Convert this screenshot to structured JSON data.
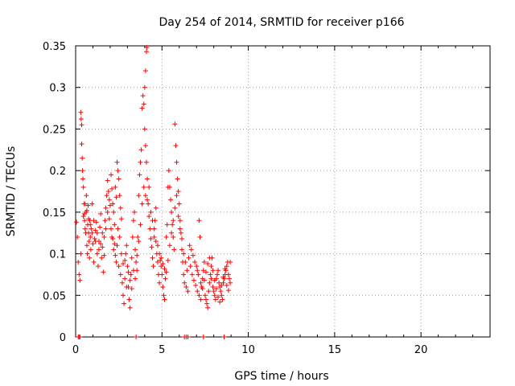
{
  "chart_data": {
    "type": "scatter",
    "title": "Day 254 of 2014, SRMTID for receiver p166",
    "xlabel": "GPS time / hours",
    "ylabel": "SRMTID / TECUs",
    "xlim": [
      0,
      24
    ],
    "ylim": [
      0,
      0.35
    ],
    "xticks": [
      0,
      5,
      10,
      15,
      20
    ],
    "xtick_labels": [
      "0",
      "5",
      "10",
      "15",
      "20"
    ],
    "yticks": [
      0,
      0.05,
      0.1,
      0.15,
      0.2,
      0.25,
      0.3,
      0.35
    ],
    "ytick_labels": [
      "0",
      "0.05",
      "0.1",
      "0.15",
      "0.2",
      "0.25",
      "0.3",
      "0.35"
    ],
    "grid": true,
    "marker": "+",
    "series": [
      {
        "name": "SRMTID p166",
        "color": "#ff0000",
        "points": [
          [
            0.05,
            0.138
          ],
          [
            0.1,
            0.12
          ],
          [
            0.15,
            0.09
          ],
          [
            0.2,
            0.075
          ],
          [
            0.25,
            0.068
          ],
          [
            0.3,
            0.1
          ],
          [
            0.3,
            0.27
          ],
          [
            0.32,
            0.262
          ],
          [
            0.35,
            0.255
          ],
          [
            0.35,
            0.232
          ],
          [
            0.38,
            0.215
          ],
          [
            0.4,
            0.2
          ],
          [
            0.42,
            0.19
          ],
          [
            0.45,
            0.18
          ],
          [
            0.48,
            0.16
          ],
          [
            0.5,
            0.148
          ],
          [
            0.52,
            0.14
          ],
          [
            0.55,
            0.13
          ],
          [
            0.58,
            0.125
          ],
          [
            0.6,
            0.15
          ],
          [
            0.62,
            0.17
          ],
          [
            0.65,
            0.11
          ],
          [
            0.68,
            0.1
          ],
          [
            0.7,
            0.135
          ],
          [
            0.72,
            0.158
          ],
          [
            0.75,
            0.125
          ],
          [
            0.78,
            0.115
          ],
          [
            0.8,
            0.095
          ],
          [
            0.82,
            0.14
          ],
          [
            0.85,
            0.12
          ],
          [
            0.88,
            0.105
          ],
          [
            0.9,
            0.13
          ],
          [
            0.95,
            0.16
          ],
          [
            1.0,
            0.112
          ],
          [
            1.05,
            0.09
          ],
          [
            1.1,
            0.118
          ],
          [
            1.15,
            0.128
          ],
          [
            1.2,
            0.138
          ],
          [
            1.25,
            0.1
          ],
          [
            1.3,
            0.085
          ],
          [
            1.35,
            0.115
          ],
          [
            1.4,
            0.132
          ],
          [
            1.45,
            0.148
          ],
          [
            1.5,
            0.095
          ],
          [
            1.55,
            0.108
          ],
          [
            1.6,
            0.078
          ],
          [
            1.65,
            0.12
          ],
          [
            1.7,
            0.14
          ],
          [
            1.75,
            0.155
          ],
          [
            1.8,
            0.17
          ],
          [
            1.85,
            0.188
          ],
          [
            1.9,
            0.175
          ],
          [
            1.95,
            0.165
          ],
          [
            2.0,
            0.158
          ],
          [
            2.05,
            0.195
          ],
          [
            2.1,
            0.178
          ],
          [
            2.15,
            0.16
          ],
          [
            2.2,
            0.15
          ],
          [
            2.25,
            0.135
          ],
          [
            2.3,
            0.18
          ],
          [
            2.35,
            0.168
          ],
          [
            2.4,
            0.21
          ],
          [
            2.45,
            0.2
          ],
          [
            2.5,
            0.19
          ],
          [
            2.55,
            0.17
          ],
          [
            2.6,
            0.155
          ],
          [
            2.65,
            0.142
          ],
          [
            2.1,
            0.12
          ],
          [
            2.2,
            0.105
          ],
          [
            2.3,
            0.098
          ],
          [
            2.4,
            0.11
          ],
          [
            2.5,
            0.085
          ],
          [
            2.6,
            0.075
          ],
          [
            2.7,
            0.065
          ],
          [
            2.75,
            0.05
          ],
          [
            2.8,
            0.04
          ],
          [
            2.85,
            0.092
          ],
          [
            2.9,
            0.1
          ],
          [
            2.95,
            0.11
          ],
          [
            3.0,
            0.085
          ],
          [
            3.05,
            0.06
          ],
          [
            3.1,
            0.045
          ],
          [
            3.15,
            0.035
          ],
          [
            3.2,
            0.075
          ],
          [
            3.25,
            0.095
          ],
          [
            3.3,
            0.12
          ],
          [
            3.35,
            0.14
          ],
          [
            3.4,
            0.15
          ],
          [
            3.45,
            0.105
          ],
          [
            3.5,
            0.09
          ],
          [
            3.55,
            0.08
          ],
          [
            3.6,
            0.12
          ],
          [
            3.65,
            0.17
          ],
          [
            3.7,
            0.195
          ],
          [
            3.75,
            0.21
          ],
          [
            3.8,
            0.225
          ],
          [
            3.85,
            0.275
          ],
          [
            3.9,
            0.29
          ],
          [
            3.95,
            0.28
          ],
          [
            4.0,
            0.3
          ],
          [
            4.05,
            0.32
          ],
          [
            4.1,
            0.343
          ],
          [
            4.12,
            0.348
          ],
          [
            4.0,
            0.25
          ],
          [
            4.05,
            0.23
          ],
          [
            4.1,
            0.21
          ],
          [
            4.15,
            0.19
          ],
          [
            4.2,
            0.16
          ],
          [
            4.25,
            0.145
          ],
          [
            4.3,
            0.13
          ],
          [
            4.35,
            0.118
          ],
          [
            4.4,
            0.108
          ],
          [
            4.45,
            0.095
          ],
          [
            4.5,
            0.085
          ],
          [
            4.55,
            0.12
          ],
          [
            4.6,
            0.14
          ],
          [
            4.65,
            0.155
          ],
          [
            4.7,
            0.1
          ],
          [
            4.75,
            0.09
          ],
          [
            4.8,
            0.075
          ],
          [
            4.85,
            0.065
          ],
          [
            4.9,
            0.092
          ],
          [
            4.95,
            0.085
          ],
          [
            5.0,
            0.075
          ],
          [
            5.05,
            0.06
          ],
          [
            5.1,
            0.05
          ],
          [
            5.15,
            0.045
          ],
          [
            5.2,
            0.07
          ],
          [
            5.25,
            0.12
          ],
          [
            5.3,
            0.135
          ],
          [
            5.35,
            0.18
          ],
          [
            5.4,
            0.2
          ],
          [
            5.45,
            0.18
          ],
          [
            5.5,
            0.165
          ],
          [
            5.55,
            0.15
          ],
          [
            5.6,
            0.135
          ],
          [
            5.65,
            0.12
          ],
          [
            5.7,
            0.105
          ],
          [
            5.75,
            0.256
          ],
          [
            5.8,
            0.23
          ],
          [
            5.85,
            0.21
          ],
          [
            5.9,
            0.19
          ],
          [
            5.95,
            0.175
          ],
          [
            6.0,
            0.16
          ],
          [
            6.05,
            0.14
          ],
          [
            6.1,
            0.125
          ],
          [
            6.15,
            0.105
          ],
          [
            6.2,
            0.09
          ],
          [
            6.25,
            0.075
          ],
          [
            6.3,
            0.065
          ],
          [
            6.4,
            0.06
          ],
          [
            6.5,
            0.055
          ],
          [
            6.6,
            0.11
          ],
          [
            6.7,
            0.105
          ],
          [
            6.8,
            0.098
          ],
          [
            6.9,
            0.09
          ],
          [
            7.0,
            0.085
          ],
          [
            7.05,
            0.08
          ],
          [
            7.1,
            0.075
          ],
          [
            7.15,
            0.14
          ],
          [
            7.2,
            0.12
          ],
          [
            7.25,
            0.065
          ],
          [
            7.3,
            0.06
          ],
          [
            7.35,
            0.07
          ],
          [
            7.4,
            0.08
          ],
          [
            7.45,
            0.09
          ],
          [
            7.5,
            0.05
          ],
          [
            7.55,
            0.045
          ],
          [
            7.6,
            0.04
          ],
          [
            7.65,
            0.035
          ],
          [
            7.7,
            0.055
          ],
          [
            7.75,
            0.065
          ],
          [
            7.8,
            0.075
          ],
          [
            7.85,
            0.085
          ],
          [
            7.9,
            0.095
          ],
          [
            7.95,
            0.06
          ],
          [
            8.0,
            0.055
          ],
          [
            8.05,
            0.05
          ],
          [
            8.1,
            0.045
          ],
          [
            8.15,
            0.07
          ],
          [
            8.2,
            0.075
          ],
          [
            8.25,
            0.08
          ],
          [
            8.3,
            0.065
          ],
          [
            8.35,
            0.06
          ],
          [
            8.4,
            0.055
          ],
          [
            8.45,
            0.05
          ],
          [
            8.5,
            0.045
          ],
          [
            8.55,
            0.065
          ],
          [
            8.6,
            0.07
          ],
          [
            8.65,
            0.075
          ],
          [
            8.7,
            0.08
          ],
          [
            8.75,
            0.085
          ],
          [
            8.8,
            0.09
          ],
          [
            8.85,
            0.075
          ],
          [
            8.9,
            0.07
          ],
          [
            8.95,
            0.065
          ],
          [
            0.45,
            0.145
          ],
          [
            0.55,
            0.16
          ],
          [
            0.65,
            0.152
          ],
          [
            0.75,
            0.142
          ],
          [
            0.85,
            0.135
          ],
          [
            0.95,
            0.125
          ],
          [
            1.05,
            0.14
          ],
          [
            1.15,
            0.115
          ],
          [
            1.25,
            0.125
          ],
          [
            1.35,
            0.105
          ],
          [
            1.45,
            0.112
          ],
          [
            1.55,
            0.125
          ],
          [
            1.65,
            0.098
          ],
          [
            1.75,
            0.13
          ],
          [
            1.85,
            0.15
          ],
          [
            1.95,
            0.142
          ],
          [
            2.05,
            0.13
          ],
          [
            2.15,
            0.118
          ],
          [
            2.25,
            0.112
          ],
          [
            2.35,
            0.09
          ],
          [
            2.45,
            0.13
          ],
          [
            2.55,
            0.12
          ],
          [
            2.65,
            0.1
          ],
          [
            2.75,
            0.088
          ],
          [
            2.85,
            0.07
          ],
          [
            2.95,
            0.06
          ],
          [
            3.05,
            0.078
          ],
          [
            3.15,
            0.068
          ],
          [
            3.25,
            0.058
          ],
          [
            3.35,
            0.08
          ],
          [
            3.45,
            0.07
          ],
          [
            3.55,
            0.098
          ],
          [
            3.65,
            0.115
          ],
          [
            3.75,
            0.135
          ],
          [
            3.85,
            0.16
          ],
          [
            3.95,
            0.18
          ],
          [
            4.05,
            0.17
          ],
          [
            4.15,
            0.165
          ],
          [
            4.25,
            0.18
          ],
          [
            4.35,
            0.15
          ],
          [
            4.45,
            0.14
          ],
          [
            4.55,
            0.13
          ],
          [
            4.65,
            0.115
          ],
          [
            4.75,
            0.11
          ],
          [
            4.85,
            0.1
          ],
          [
            4.95,
            0.095
          ],
          [
            5.05,
            0.088
          ],
          [
            5.15,
            0.082
          ],
          [
            5.25,
            0.078
          ],
          [
            5.35,
            0.092
          ],
          [
            5.45,
            0.11
          ],
          [
            5.55,
            0.125
          ],
          [
            5.65,
            0.14
          ],
          [
            5.75,
            0.155
          ],
          [
            5.85,
            0.17
          ],
          [
            5.95,
            0.145
          ],
          [
            6.05,
            0.13
          ],
          [
            6.15,
            0.118
          ],
          [
            6.25,
            0.1
          ],
          [
            6.35,
            0.09
          ],
          [
            6.45,
            0.08
          ],
          [
            6.55,
            0.095
          ],
          [
            6.65,
            0.085
          ],
          [
            6.75,
            0.075
          ],
          [
            6.85,
            0.068
          ],
          [
            6.95,
            0.062
          ],
          [
            7.05,
            0.055
          ],
          [
            7.15,
            0.05
          ],
          [
            7.25,
            0.045
          ],
          [
            7.35,
            0.058
          ],
          [
            7.45,
            0.068
          ],
          [
            7.55,
            0.078
          ],
          [
            7.65,
            0.088
          ],
          [
            7.75,
            0.095
          ],
          [
            7.85,
            0.07
          ],
          [
            7.95,
            0.08
          ],
          [
            8.05,
            0.068
          ],
          [
            8.15,
            0.058
          ],
          [
            8.25,
            0.048
          ],
          [
            8.35,
            0.042
          ],
          [
            8.45,
            0.062
          ],
          [
            8.55,
            0.072
          ],
          [
            8.65,
            0.082
          ],
          [
            8.75,
            0.062
          ],
          [
            8.85,
            0.056
          ],
          [
            8.95,
            0.09
          ],
          [
            0.15,
            0.0
          ],
          [
            0.2,
            0.0
          ],
          [
            0.25,
            0.0
          ],
          [
            3.5,
            0.0
          ],
          [
            6.3,
            0.0
          ],
          [
            6.4,
            0.0
          ],
          [
            6.5,
            0.0
          ],
          [
            7.4,
            0.0
          ],
          [
            8.6,
            0.0
          ]
        ]
      }
    ]
  }
}
